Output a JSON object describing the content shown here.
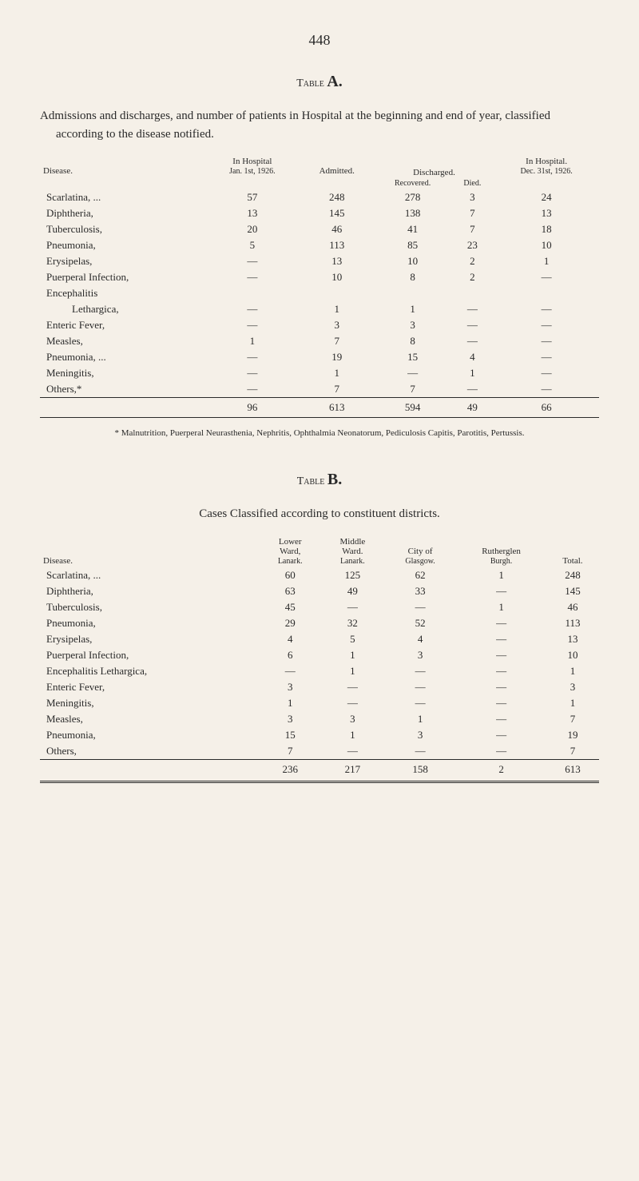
{
  "page_number": "448",
  "tableA": {
    "title_prefix": "Table",
    "title_letter": "A.",
    "intro": "Admissions and discharges, and number of patients in Hospital at the beginning and end of year, classified according to the disease notified.",
    "headers": {
      "disease": "Disease.",
      "in_hospital_top": "In Hospital",
      "in_hospital_sub": "Jan. 1st, 1926.",
      "admitted": "Admitted.",
      "discharged": "Discharged.",
      "recovered": "Recovered.",
      "died": "Died.",
      "in_hospital_end_top": "In Hospital.",
      "in_hospital_end_sub": "Dec. 31st, 1926."
    },
    "rows": [
      {
        "disease": "Scarlatina, ...",
        "jan": "57",
        "admitted": "248",
        "recovered": "278",
        "died": "3",
        "dec": "24",
        "indent": false
      },
      {
        "disease": "Diphtheria,",
        "jan": "13",
        "admitted": "145",
        "recovered": "138",
        "died": "7",
        "dec": "13",
        "indent": false
      },
      {
        "disease": "Tuberculosis,",
        "jan": "20",
        "admitted": "46",
        "recovered": "41",
        "died": "7",
        "dec": "18",
        "indent": false
      },
      {
        "disease": "Pneumonia,",
        "jan": "5",
        "admitted": "113",
        "recovered": "85",
        "died": "23",
        "dec": "10",
        "indent": false
      },
      {
        "disease": "Erysipelas,",
        "jan": "—",
        "admitted": "13",
        "recovered": "10",
        "died": "2",
        "dec": "1",
        "indent": false
      },
      {
        "disease": "Puerperal Infection,",
        "jan": "—",
        "admitted": "10",
        "recovered": "8",
        "died": "2",
        "dec": "—",
        "indent": false
      },
      {
        "disease": "Encephalitis",
        "jan": "",
        "admitted": "",
        "recovered": "",
        "died": "",
        "dec": "",
        "indent": false
      },
      {
        "disease": "Lethargica,",
        "jan": "—",
        "admitted": "1",
        "recovered": "1",
        "died": "—",
        "dec": "—",
        "indent": true
      },
      {
        "disease": "Enteric Fever,",
        "jan": "—",
        "admitted": "3",
        "recovered": "3",
        "died": "—",
        "dec": "—",
        "indent": false
      },
      {
        "disease": "Measles,",
        "jan": "1",
        "admitted": "7",
        "recovered": "8",
        "died": "—",
        "dec": "—",
        "indent": false
      },
      {
        "disease": "Pneumonia, ...",
        "jan": "—",
        "admitted": "19",
        "recovered": "15",
        "died": "4",
        "dec": "—",
        "indent": false
      },
      {
        "disease": "Meningitis,",
        "jan": "—",
        "admitted": "1",
        "recovered": "—",
        "died": "1",
        "dec": "—",
        "indent": false
      },
      {
        "disease": "Others,*",
        "jan": "—",
        "admitted": "7",
        "recovered": "7",
        "died": "—",
        "dec": "—",
        "indent": false
      }
    ],
    "totals": {
      "jan": "96",
      "admitted": "613",
      "recovered": "594",
      "died": "49",
      "dec": "66"
    },
    "footnote": "* Malnutrition, Puerperal Neurasthenia, Nephritis, Ophthalmia Neonatorum, Pediculosis Capitis, Parotitis, Pertussis."
  },
  "tableB": {
    "title_prefix": "Table",
    "title_letter": "B.",
    "intro": "Cases Classified according to constituent districts.",
    "headers": {
      "disease": "Disease.",
      "lower_top": "Lower",
      "lower_mid": "Ward,",
      "lower_sub": "Lanark.",
      "middle_top": "Middle",
      "middle_mid": "Ward.",
      "middle_sub": "Lanark.",
      "city_top": "City of",
      "city_sub": "Glasgow.",
      "ruth_top": "Rutherglen",
      "ruth_sub": "Burgh.",
      "total": "Total."
    },
    "rows": [
      {
        "disease": "Scarlatina, ...",
        "lower": "60",
        "middle": "125",
        "city": "62",
        "ruth": "1",
        "total": "248"
      },
      {
        "disease": "Diphtheria,",
        "lower": "63",
        "middle": "49",
        "city": "33",
        "ruth": "—",
        "total": "145"
      },
      {
        "disease": "Tuberculosis,",
        "lower": "45",
        "middle": "—",
        "city": "—",
        "ruth": "1",
        "total": "46"
      },
      {
        "disease": "Pneumonia,",
        "lower": "29",
        "middle": "32",
        "city": "52",
        "ruth": "—",
        "total": "113"
      },
      {
        "disease": "Erysipelas,",
        "lower": "4",
        "middle": "5",
        "city": "4",
        "ruth": "—",
        "total": "13"
      },
      {
        "disease": "Puerperal Infection,",
        "lower": "6",
        "middle": "1",
        "city": "3",
        "ruth": "—",
        "total": "10"
      },
      {
        "disease": "Encephalitis Lethargica,",
        "lower": "—",
        "middle": "1",
        "city": "—",
        "ruth": "—",
        "total": "1"
      },
      {
        "disease": "Enteric Fever,",
        "lower": "3",
        "middle": "—",
        "city": "—",
        "ruth": "—",
        "total": "3"
      },
      {
        "disease": "Meningitis,",
        "lower": "1",
        "middle": "—",
        "city": "—",
        "ruth": "—",
        "total": "1"
      },
      {
        "disease": "Measles,",
        "lower": "3",
        "middle": "3",
        "city": "1",
        "ruth": "—",
        "total": "7"
      },
      {
        "disease": "Pneumonia,",
        "lower": "15",
        "middle": "1",
        "city": "3",
        "ruth": "—",
        "total": "19"
      },
      {
        "disease": "Others,",
        "lower": "7",
        "middle": "—",
        "city": "—",
        "ruth": "—",
        "total": "7"
      }
    ],
    "totals": {
      "lower": "236",
      "middle": "217",
      "city": "158",
      "ruth": "2",
      "total": "613"
    }
  }
}
